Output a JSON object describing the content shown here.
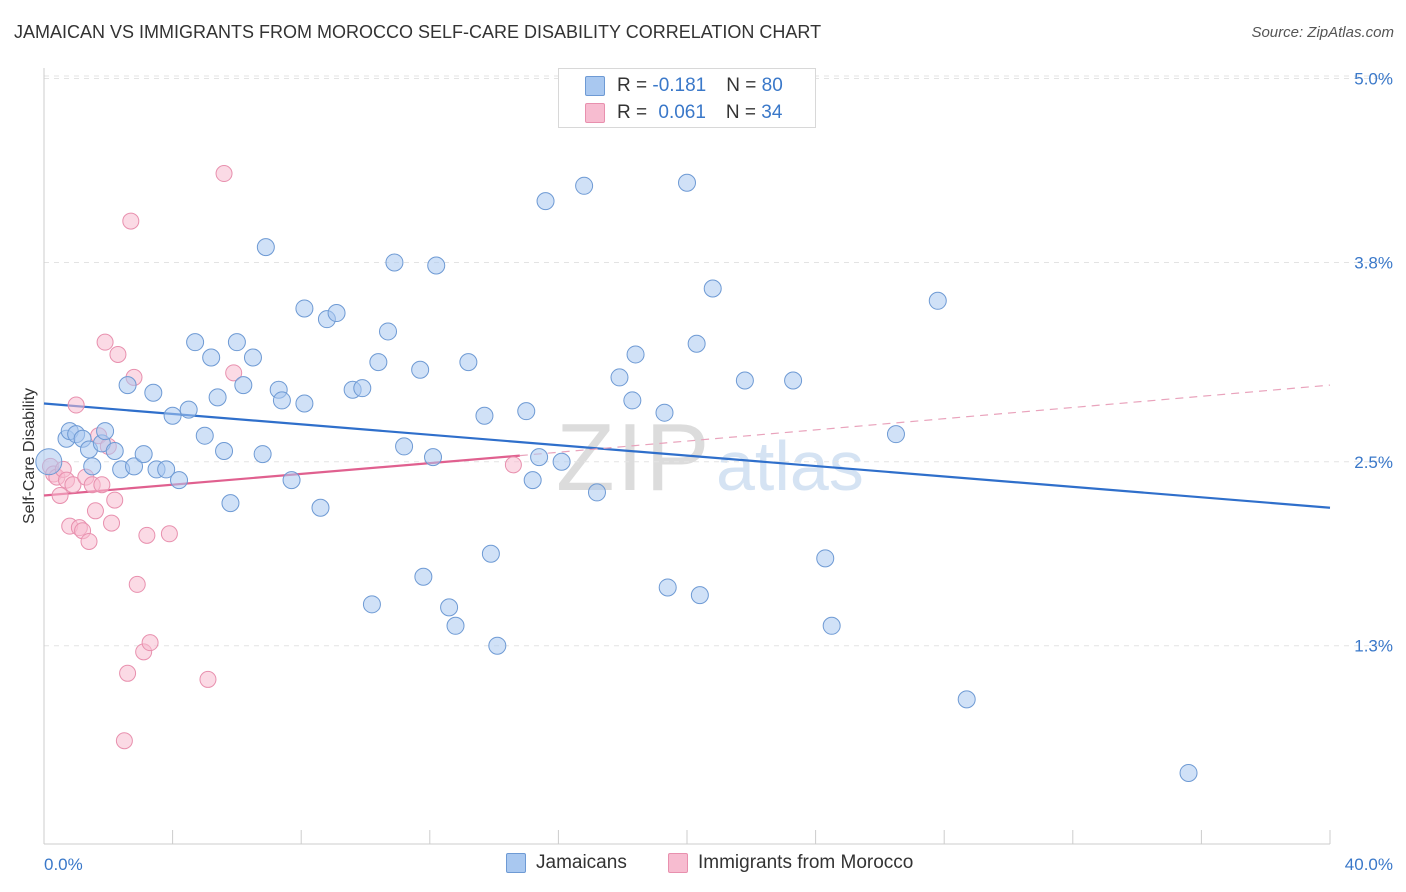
{
  "title": "JAMAICAN VS IMMIGRANTS FROM MOROCCO SELF-CARE DISABILITY CORRELATION CHART",
  "source": "Source: ZipAtlas.com",
  "watermark": {
    "zip": "ZIP",
    "atlas": "atlas"
  },
  "legend": {
    "rows": [
      {
        "r_label": "R = ",
        "r_value": "-0.181",
        "n_label": "N = ",
        "n_value": "80",
        "color": "#9ec0ec",
        "border": "#6f9bd6"
      },
      {
        "r_label": "R = ",
        "r_value": "0.061",
        "n_label": "N = ",
        "n_value": "34",
        "color": "#f6b6cb",
        "border": "#e88aa9"
      }
    ]
  },
  "chart_data": {
    "type": "scatter",
    "title": "JAMAICAN VS IMMIGRANTS FROM MOROCCO SELF-CARE DISABILITY CORRELATION CHART",
    "xlabel": "",
    "ylabel": "Self-Care Disability",
    "xlim": [
      0,
      40
    ],
    "ylim": [
      0,
      5.2
    ],
    "x_tick_labels": [
      "0.0%",
      "40.0%"
    ],
    "y_ticks": [
      1.3,
      2.5,
      3.8,
      5.0
    ],
    "y_tick_labels": [
      "1.3%",
      "2.5%",
      "3.8%",
      "5.0%"
    ],
    "grid": "horizontal dashed",
    "legend_position": "top-center",
    "series": [
      {
        "name": "Jamaicans",
        "color": "#a9c8f0",
        "stroke": "#6e9ad4",
        "line_color": "#2f6fcb",
        "trend": {
          "x0": 0,
          "y0": 2.88,
          "x1": 40,
          "y1": 2.2
        },
        "points": [
          [
            0.15,
            2.5
          ],
          [
            0.7,
            2.65
          ],
          [
            0.8,
            2.7
          ],
          [
            1.0,
            2.68
          ],
          [
            1.2,
            2.65
          ],
          [
            1.4,
            2.58
          ],
          [
            1.5,
            2.47
          ],
          [
            1.8,
            2.62
          ],
          [
            1.9,
            2.7
          ],
          [
            2.2,
            2.57
          ],
          [
            2.4,
            2.45
          ],
          [
            2.6,
            3.0
          ],
          [
            2.8,
            2.47
          ],
          [
            3.1,
            2.55
          ],
          [
            3.4,
            2.95
          ],
          [
            3.5,
            2.45
          ],
          [
            3.8,
            2.45
          ],
          [
            4.0,
            2.8
          ],
          [
            4.2,
            2.38
          ],
          [
            4.5,
            2.84
          ],
          [
            4.7,
            3.28
          ],
          [
            5.0,
            2.67
          ],
          [
            5.2,
            3.18
          ],
          [
            5.4,
            2.92
          ],
          [
            5.6,
            2.57
          ],
          [
            5.8,
            2.23
          ],
          [
            6.0,
            3.28
          ],
          [
            6.2,
            3.0
          ],
          [
            6.5,
            3.18
          ],
          [
            6.8,
            2.55
          ],
          [
            6.9,
            3.9
          ],
          [
            7.3,
            2.97
          ],
          [
            7.4,
            2.9
          ],
          [
            7.7,
            2.38
          ],
          [
            8.1,
            2.88
          ],
          [
            8.1,
            3.5
          ],
          [
            8.6,
            2.2
          ],
          [
            8.8,
            3.43
          ],
          [
            9.1,
            3.47
          ],
          [
            9.6,
            2.97
          ],
          [
            9.9,
            2.98
          ],
          [
            10.2,
            1.57
          ],
          [
            10.4,
            3.15
          ],
          [
            10.7,
            3.35
          ],
          [
            10.9,
            3.8
          ],
          [
            11.2,
            2.6
          ],
          [
            11.7,
            3.1
          ],
          [
            11.8,
            1.75
          ],
          [
            12.1,
            2.53
          ],
          [
            12.2,
            3.78
          ],
          [
            12.6,
            1.55
          ],
          [
            12.8,
            1.43
          ],
          [
            13.2,
            3.15
          ],
          [
            13.7,
            2.8
          ],
          [
            13.9,
            1.9
          ],
          [
            14.1,
            1.3
          ],
          [
            15.0,
            2.83
          ],
          [
            15.2,
            2.38
          ],
          [
            15.4,
            2.53
          ],
          [
            15.6,
            4.2
          ],
          [
            16.1,
            2.5
          ],
          [
            16.8,
            4.3
          ],
          [
            17.2,
            2.3
          ],
          [
            17.9,
            3.05
          ],
          [
            18.3,
            2.9
          ],
          [
            18.4,
            3.2
          ],
          [
            19.3,
            2.82
          ],
          [
            19.4,
            1.68
          ],
          [
            20.0,
            4.32
          ],
          [
            20.3,
            3.27
          ],
          [
            20.4,
            1.63
          ],
          [
            20.8,
            3.63
          ],
          [
            21.8,
            3.03
          ],
          [
            23.3,
            3.03
          ],
          [
            24.3,
            1.87
          ],
          [
            24.5,
            1.43
          ],
          [
            26.5,
            2.68
          ],
          [
            27.8,
            3.55
          ],
          [
            28.7,
            0.95
          ],
          [
            35.6,
            0.47
          ]
        ]
      },
      {
        "name": "Immigrants from Morocco",
        "color": "#f7bcd0",
        "stroke": "#e890ae",
        "line_color": "#e0608f",
        "trend": {
          "x0": 0,
          "y0": 2.28,
          "x1": 14.8,
          "y1": 2.54
        },
        "trend_ext": {
          "x0": 14.8,
          "y0": 2.54,
          "x1": 40,
          "y1": 3.0
        },
        "points": [
          [
            0.2,
            2.47
          ],
          [
            0.3,
            2.42
          ],
          [
            0.4,
            2.4
          ],
          [
            0.5,
            2.28
          ],
          [
            0.6,
            2.45
          ],
          [
            0.7,
            2.38
          ],
          [
            0.8,
            2.08
          ],
          [
            0.9,
            2.35
          ],
          [
            1.0,
            2.87
          ],
          [
            1.1,
            2.07
          ],
          [
            1.2,
            2.05
          ],
          [
            1.3,
            2.4
          ],
          [
            1.4,
            1.98
          ],
          [
            1.5,
            2.35
          ],
          [
            1.6,
            2.18
          ],
          [
            1.8,
            2.35
          ],
          [
            1.7,
            2.67
          ],
          [
            1.9,
            3.28
          ],
          [
            2.0,
            2.6
          ],
          [
            2.1,
            2.1
          ],
          [
            2.2,
            2.25
          ],
          [
            2.3,
            3.2
          ],
          [
            2.5,
            0.68
          ],
          [
            2.6,
            1.12
          ],
          [
            2.7,
            4.07
          ],
          [
            2.8,
            3.05
          ],
          [
            2.9,
            1.7
          ],
          [
            3.1,
            1.26
          ],
          [
            3.2,
            2.02
          ],
          [
            3.3,
            1.32
          ],
          [
            3.9,
            2.03
          ],
          [
            5.1,
            1.08
          ],
          [
            5.6,
            4.38
          ],
          [
            5.9,
            3.08
          ]
        ]
      }
    ],
    "extra_series_point": {
      "series": "Immigrants from Morocco",
      "point": [
        14.6,
        2.48
      ]
    }
  }
}
